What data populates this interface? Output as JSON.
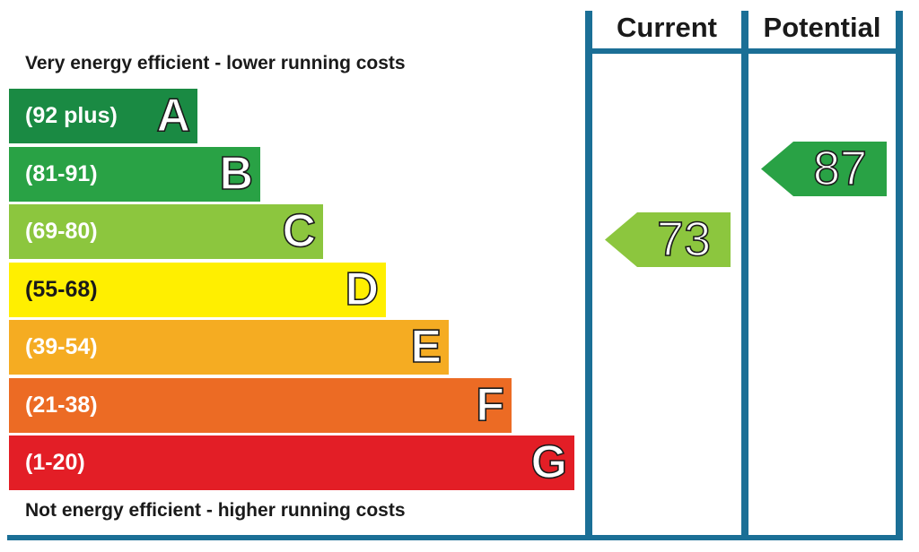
{
  "chart_data": {
    "type": "energy-rating",
    "top_label": "Very energy efficient - lower running costs",
    "bottom_label": "Not energy efficient - higher running costs",
    "columns": [
      "Current",
      "Potential"
    ],
    "bands": [
      {
        "letter": "A",
        "range": "(92 plus)",
        "color": "#1a8a43"
      },
      {
        "letter": "B",
        "range": "(81-91)",
        "color": "#29a245"
      },
      {
        "letter": "C",
        "range": "(69-80)",
        "color": "#8cc63e"
      },
      {
        "letter": "D",
        "range": "(55-68)",
        "color": "#ffef00"
      },
      {
        "letter": "E",
        "range": "(39-54)",
        "color": "#f5ac22"
      },
      {
        "letter": "F",
        "range": "(21-38)",
        "color": "#ec6b24"
      },
      {
        "letter": "G",
        "range": "(1-20)",
        "color": "#e31e26"
      }
    ],
    "current": {
      "value": "73",
      "band": "C",
      "color": "#8cc63e"
    },
    "potential": {
      "value": "87",
      "band": "B",
      "color": "#29a245"
    }
  },
  "colors": {
    "frame": "#1b6f96",
    "text": "#1a1a1a"
  }
}
